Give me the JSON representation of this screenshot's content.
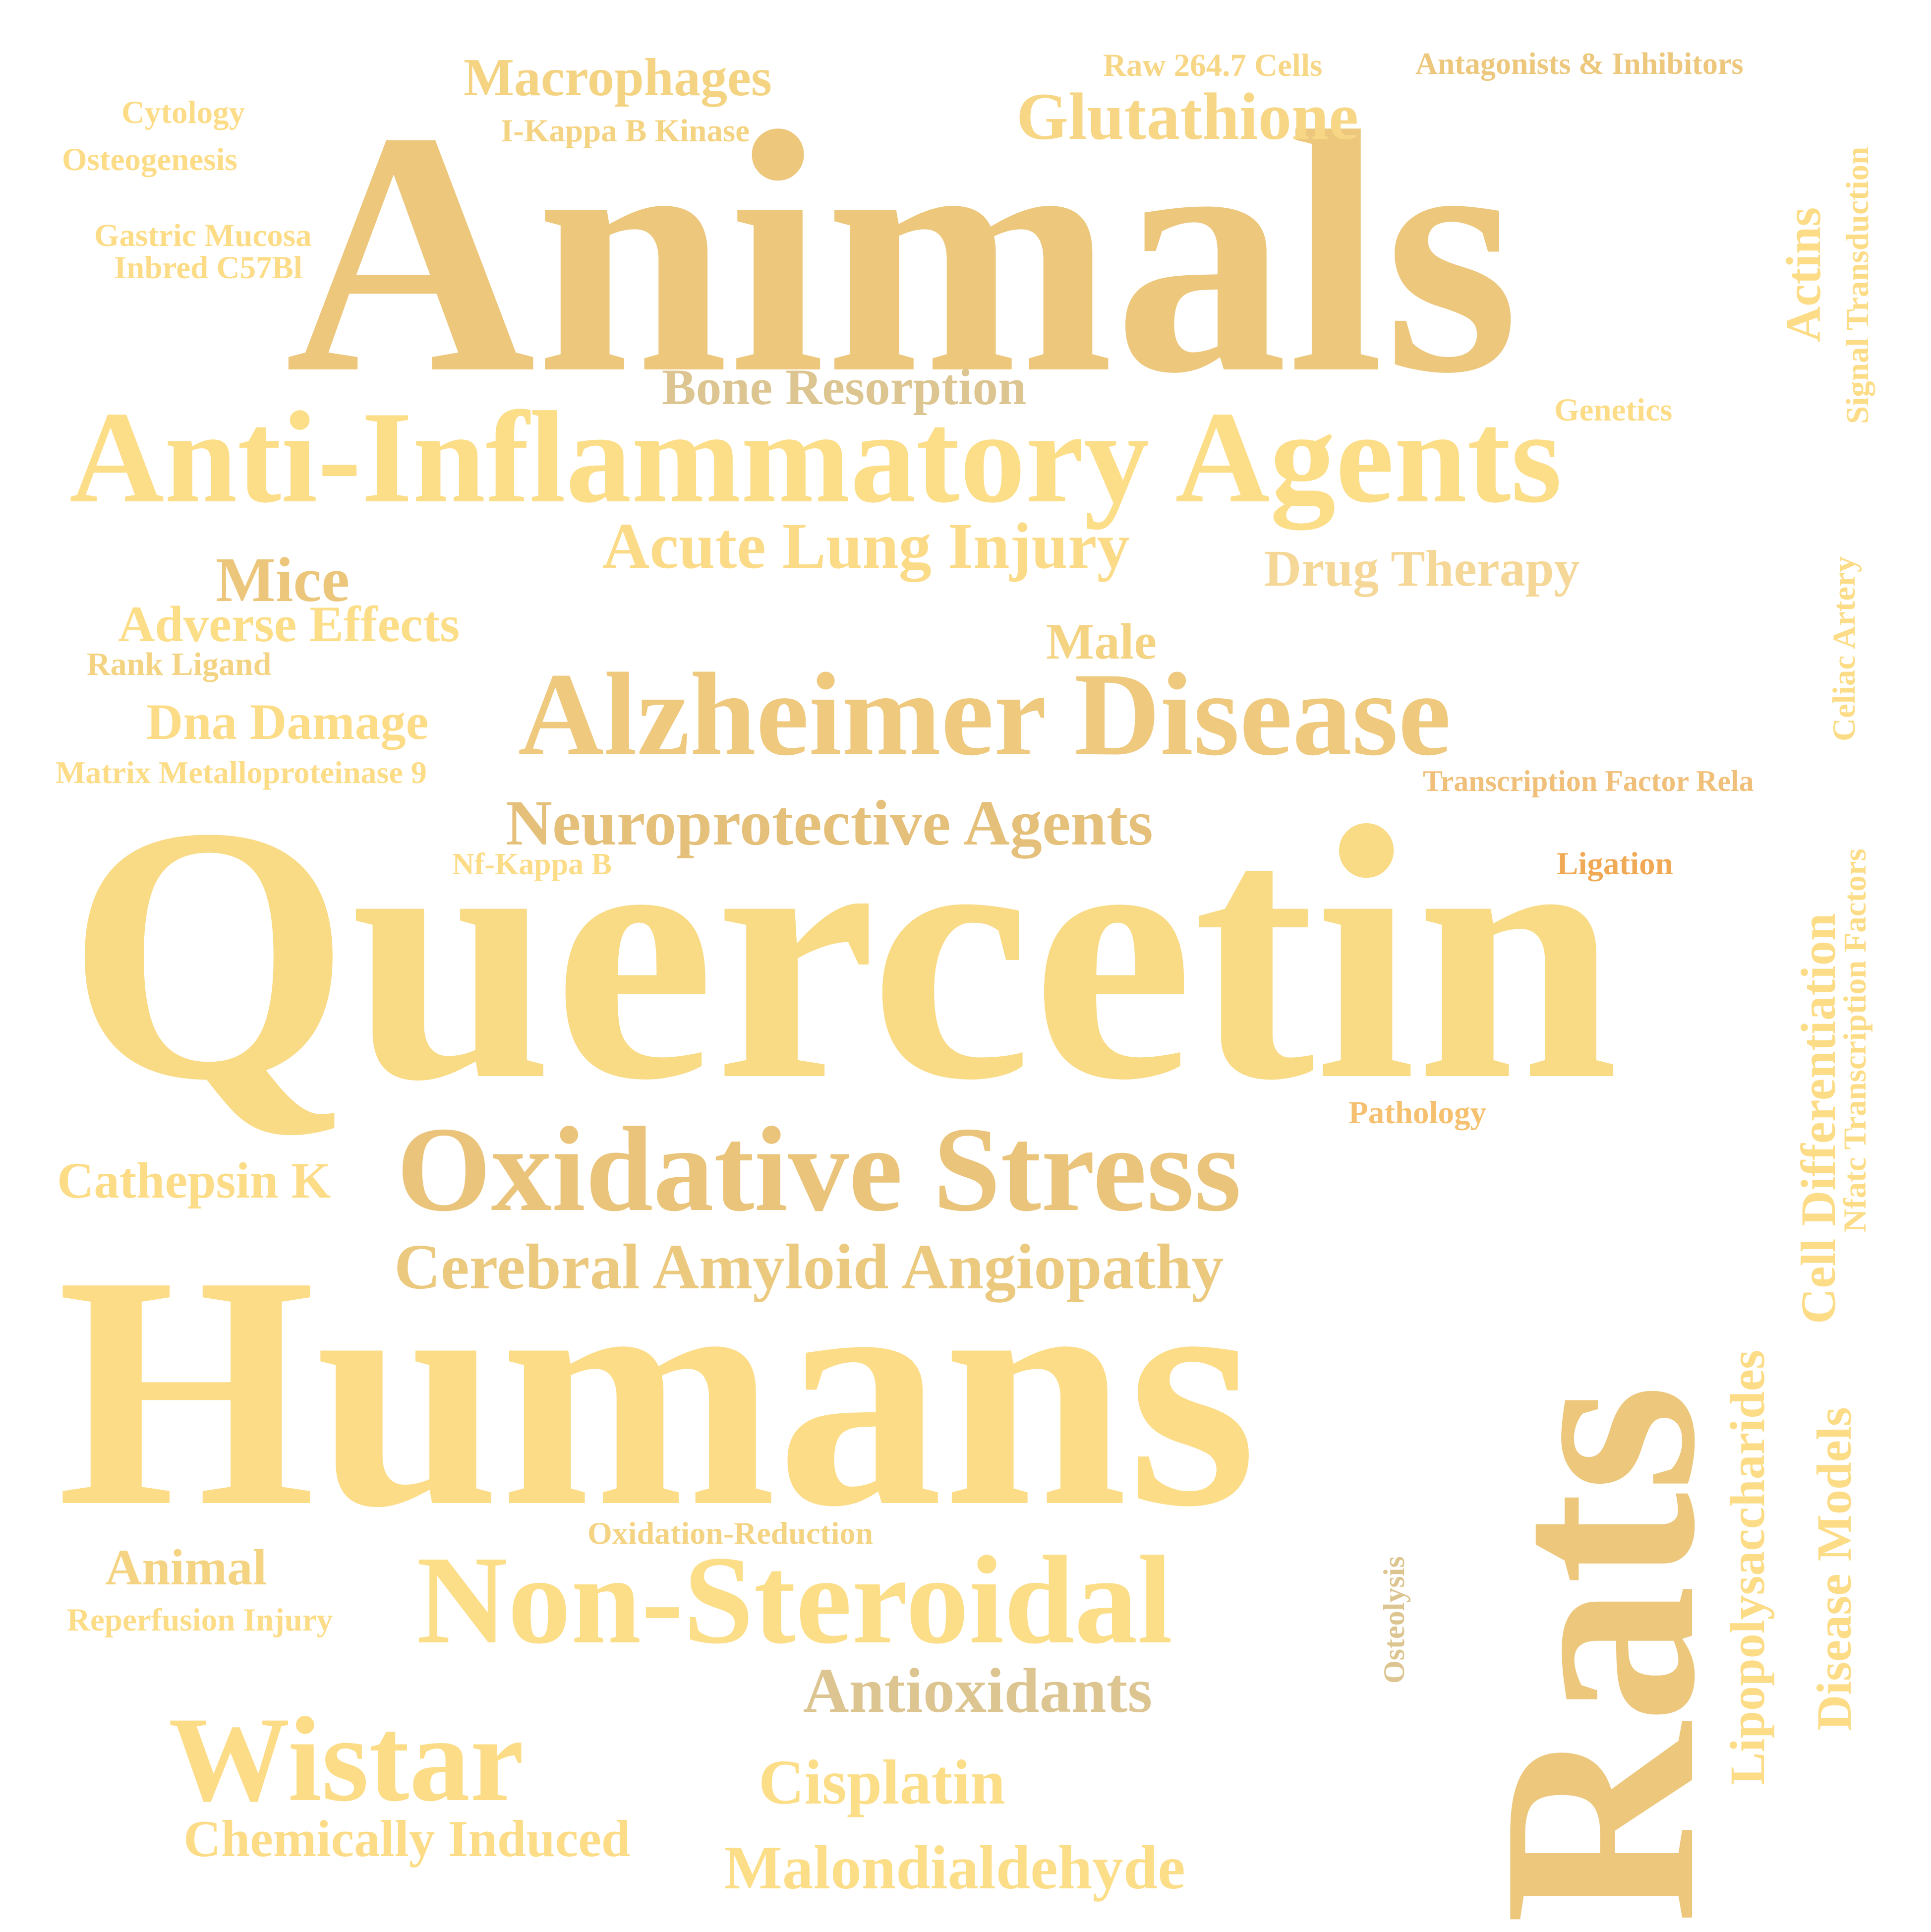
{
  "words": {
    "animals": {
      "text": "Animals",
      "color": "#ecc77c"
    },
    "quercetin": {
      "text": "Quercetin",
      "color": "#f9da85"
    },
    "humans": {
      "text": "Humans",
      "color": "#fcdc87"
    },
    "rats": {
      "text": "Rats",
      "color": "#ecc77c"
    },
    "anti_inflammatory_agents": {
      "text": "Anti-Inflammatory Agents",
      "color": "#fcdd88"
    },
    "alzheimer_disease": {
      "text": "Alzheimer Disease",
      "color": "#eec97e"
    },
    "oxidative_stress": {
      "text": "Oxidative Stress",
      "color": "#eac47a"
    },
    "non_steroidal": {
      "text": "Non-Steroidal",
      "color": "#fcdd88"
    },
    "wistar": {
      "text": "Wistar",
      "color": "#fcdc87"
    },
    "glutathione": {
      "text": "Glutathione",
      "color": "#f7d785"
    },
    "macrophages": {
      "text": "Macrophages",
      "color": "#f4d382"
    },
    "acute_lung_injury": {
      "text": "Acute Lung Injury",
      "color": "#fbdb87"
    },
    "neuroprotective_agents": {
      "text": "Neuroprotective Agents",
      "color": "#e5c07a"
    },
    "cerebral_amyloid_angiopathy": {
      "text": "Cerebral Amyloid Angiopathy",
      "color": "#ebc97f"
    },
    "antioxidants": {
      "text": "Antioxidants",
      "color": "#dcc591"
    },
    "cisplatin": {
      "text": "Cisplatin",
      "color": "#fcdd88"
    },
    "malondialdehyde": {
      "text": "Malondialdehyde",
      "color": "#fcdd88"
    },
    "chemically_induced": {
      "text": "Chemically Induced",
      "color": "#fcdc87"
    },
    "bone_resorption": {
      "text": "Bone Resorption",
      "color": "#dcc591"
    },
    "mice": {
      "text": "Mice",
      "color": "#ebc67b"
    },
    "adverse_effects": {
      "text": "Adverse Effects",
      "color": "#fcdd88"
    },
    "drug_therapy": {
      "text": "Drug Therapy",
      "color": "#f5d797"
    },
    "dna_damage": {
      "text": "Dna Damage",
      "color": "#fcdc87"
    },
    "male": {
      "text": "Male",
      "color": "#f4d382"
    },
    "cathepsin_k": {
      "text": "Cathepsin K",
      "color": "#fcdc87"
    },
    "animal": {
      "text": "Animal",
      "color": "#f4d382"
    },
    "cytology": {
      "text": "Cytology",
      "color": "#fcdc87"
    },
    "osteogenesis": {
      "text": "Osteogenesis",
      "color": "#fcdc87"
    },
    "gastric_mucosa": {
      "text": "Gastric Mucosa",
      "color": "#fcdc87"
    },
    "inbred_c57bl": {
      "text": "Inbred C57Bl",
      "color": "#fcdc87"
    },
    "i_kappa_b_kinase": {
      "text": "I-Kappa B Kinase",
      "color": "#f4d382"
    },
    "raw_264_7_cells": {
      "text": "Raw 264.7 Cells",
      "color": "#f7d785"
    },
    "antagonists_inhibitors": {
      "text": "Antagonists & Inhibitors",
      "color": "#ecc77c"
    },
    "rank_ligand": {
      "text": "Rank Ligand",
      "color": "#f4d382"
    },
    "matrix_metalloproteinase_9": {
      "text": "Matrix Metalloproteinase 9",
      "color": "#fcdc87"
    },
    "nf_kappa_b": {
      "text": "Nf-Kappa B",
      "color": "#fcdc87"
    },
    "genetics": {
      "text": "Genetics",
      "color": "#fcdc87"
    },
    "transcription_factor_rela": {
      "text": "Transcription Factor Rela",
      "color": "#f0c07a"
    },
    "ligation": {
      "text": "Ligation",
      "color": "#f0a955"
    },
    "pathology": {
      "text": "Pathology",
      "color": "#f5c170"
    },
    "oxidation_reduction": {
      "text": "Oxidation-Reduction",
      "color": "#f4d382"
    },
    "reperfusion_injury": {
      "text": "Reperfusion Injury",
      "color": "#fcdc87"
    },
    "osteolysis": {
      "text": "Osteolysis",
      "color": "#dcc591"
    },
    "actins": {
      "text": "Actins",
      "color": "#fcdc87"
    },
    "signal_transduction": {
      "text": "Signal Transduction",
      "color": "#fcdc87"
    },
    "celiac_artery": {
      "text": "Celiac Artery",
      "color": "#fcdc87"
    },
    "cell_differentiation": {
      "text": "Cell Differentiation",
      "color": "#fcdc87"
    },
    "nfatc_transcription_factors": {
      "text": "Nfatc Transcription Factors",
      "color": "#fcdc87"
    },
    "lipopolysaccharides": {
      "text": "Lipopolysaccharides",
      "color": "#fcdc87"
    },
    "disease_models": {
      "text": "Disease Models",
      "color": "#fcdc87"
    }
  }
}
